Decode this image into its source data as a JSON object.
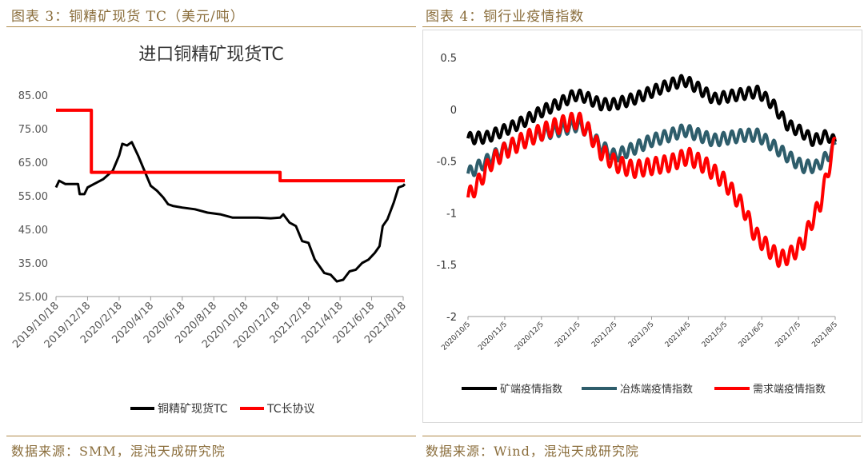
{
  "header": {
    "left_caption": "图表 3：铜精矿现货 TC（美元/吨）",
    "right_caption": "图表 4：铜行业疫情指数"
  },
  "footer": {
    "left_source": "数据来源：SMM，混沌天成研究院",
    "right_source": "数据来源：Wind，混沌天成研究院"
  },
  "colors": {
    "caption": "#8a6d3b",
    "spot_tc": "#000000",
    "long_term_tc": "#ff0000",
    "mine_index": "#000000",
    "smelt_index": "#2e5d6b",
    "demand_index": "#ff0000"
  },
  "chart_data": [
    {
      "type": "line",
      "title": "进口铜精矿现货TC",
      "xlabel": "",
      "ylabel": "",
      "ylim": [
        25,
        85
      ],
      "yticks": [
        "85.00",
        "75.00",
        "65.00",
        "55.00",
        "45.00",
        "35.00",
        "25.00"
      ],
      "x_ticks": [
        "2019/10/18",
        "2019/12/18",
        "2020/2/18",
        "2020/4/18",
        "2020/6/18",
        "2020/8/18",
        "2020/10/18",
        "2020/12/18",
        "2021/2/18",
        "2021/4/18",
        "2021/6/18",
        "2021/8/18"
      ],
      "legend_position": "bottom",
      "grid": false,
      "series": [
        {
          "name": "铜精矿现货TC",
          "points": [
            [
              0,
              57.5
            ],
            [
              0.1,
              59.5
            ],
            [
              0.3,
              58.5
            ],
            [
              0.7,
              58.5
            ],
            [
              0.75,
              55.5
            ],
            [
              0.9,
              55.5
            ],
            [
              1.0,
              57.5
            ],
            [
              1.2,
              58.5
            ],
            [
              1.5,
              60.0
            ],
            [
              1.8,
              62.5
            ],
            [
              2.0,
              67.0
            ],
            [
              2.1,
              70.5
            ],
            [
              2.25,
              70.0
            ],
            [
              2.4,
              71.0
            ],
            [
              2.6,
              67.0
            ],
            [
              2.8,
              62.5
            ],
            [
              3.0,
              58.0
            ],
            [
              3.2,
              56.5
            ],
            [
              3.4,
              54.5
            ],
            [
              3.55,
              52.5
            ],
            [
              3.7,
              52.0
            ],
            [
              4.0,
              51.5
            ],
            [
              4.4,
              51.0
            ],
            [
              4.8,
              50.0
            ],
            [
              5.2,
              49.5
            ],
            [
              5.6,
              48.5
            ],
            [
              6.0,
              48.5
            ],
            [
              6.4,
              48.5
            ],
            [
              6.8,
              48.3
            ],
            [
              7.1,
              48.5
            ],
            [
              7.2,
              49.5
            ],
            [
              7.4,
              47.0
            ],
            [
              7.6,
              46.0
            ],
            [
              7.8,
              41.5
            ],
            [
              8.0,
              41.0
            ],
            [
              8.2,
              36.0
            ],
            [
              8.5,
              32.0
            ],
            [
              8.7,
              31.5
            ],
            [
              8.9,
              29.5
            ],
            [
              9.1,
              30.0
            ],
            [
              9.3,
              32.5
            ],
            [
              9.5,
              33.0
            ],
            [
              9.7,
              35.0
            ],
            [
              9.9,
              36.0
            ],
            [
              10.1,
              38.0
            ],
            [
              10.25,
              40.0
            ],
            [
              10.35,
              46.0
            ],
            [
              10.5,
              48.0
            ],
            [
              10.7,
              53.0
            ],
            [
              10.85,
              57.5
            ],
            [
              11.0,
              58.0
            ],
            [
              11.05,
              58.5
            ]
          ]
        },
        {
          "name": "TC长协议",
          "points": [
            [
              0,
              80.5
            ],
            [
              1.12,
              80.5
            ],
            [
              1.12,
              62.0
            ],
            [
              7.1,
              62.0
            ],
            [
              7.1,
              59.5
            ],
            [
              11.05,
              59.5
            ]
          ]
        }
      ]
    },
    {
      "type": "line",
      "title": "",
      "xlabel": "",
      "ylabel": "",
      "ylim": [
        -2,
        0.5
      ],
      "yticks": [
        "0.5",
        "0",
        "-0.5",
        "-1",
        "-1.5",
        "-2"
      ],
      "x_ticks": [
        "2020/10/5",
        "2020/11/5",
        "2020/12/5",
        "2021/1/5",
        "2021/2/5",
        "2021/3/5",
        "2021/4/5",
        "2021/5/5",
        "2021/6/5",
        "2021/7/5",
        "2021/8/5"
      ],
      "legend_position": "bottom",
      "grid": false,
      "series": [
        {
          "name": "矿端疫情指数",
          "points": [
            [
              0,
              -0.28
            ],
            [
              0.5,
              -0.27
            ],
            [
              1.0,
              -0.2
            ],
            [
              1.5,
              -0.12
            ],
            [
              2.0,
              -0.02
            ],
            [
              2.5,
              0.06
            ],
            [
              2.9,
              0.14
            ],
            [
              3.2,
              0.12
            ],
            [
              3.6,
              0.05
            ],
            [
              4.0,
              0.05
            ],
            [
              4.5,
              0.1
            ],
            [
              5.0,
              0.17
            ],
            [
              5.5,
              0.24
            ],
            [
              5.9,
              0.28
            ],
            [
              6.3,
              0.2
            ],
            [
              6.7,
              0.1
            ],
            [
              7.0,
              0.12
            ],
            [
              7.5,
              0.15
            ],
            [
              7.9,
              0.17
            ],
            [
              8.3,
              0.05
            ],
            [
              8.7,
              -0.15
            ],
            [
              9.1,
              -0.22
            ],
            [
              9.4,
              -0.3
            ],
            [
              9.8,
              -0.25
            ],
            [
              10.0,
              -0.32
            ]
          ]
        },
        {
          "name": "冶炼端疫情指数",
          "points": [
            [
              0,
              -0.62
            ],
            [
              0.5,
              -0.5
            ],
            [
              1.0,
              -0.38
            ],
            [
              1.5,
              -0.3
            ],
            [
              2.0,
              -0.24
            ],
            [
              2.5,
              -0.2
            ],
            [
              3.0,
              -0.15
            ],
            [
              3.3,
              -0.22
            ],
            [
              3.6,
              -0.35
            ],
            [
              4.0,
              -0.45
            ],
            [
              4.5,
              -0.38
            ],
            [
              5.0,
              -0.3
            ],
            [
              5.5,
              -0.25
            ],
            [
              5.9,
              -0.2
            ],
            [
              6.3,
              -0.25
            ],
            [
              6.7,
              -0.3
            ],
            [
              7.0,
              -0.28
            ],
            [
              7.5,
              -0.25
            ],
            [
              7.9,
              -0.25
            ],
            [
              8.3,
              -0.35
            ],
            [
              8.7,
              -0.45
            ],
            [
              9.1,
              -0.55
            ],
            [
              9.5,
              -0.55
            ],
            [
              9.8,
              -0.45
            ],
            [
              10.0,
              -0.35
            ]
          ]
        },
        {
          "name": "需求端疫情指数",
          "points": [
            [
              0,
              -0.85
            ],
            [
              0.3,
              -0.7
            ],
            [
              0.6,
              -0.52
            ],
            [
              1.0,
              -0.4
            ],
            [
              1.5,
              -0.3
            ],
            [
              2.0,
              -0.22
            ],
            [
              2.5,
              -0.15
            ],
            [
              3.0,
              -0.1
            ],
            [
              3.3,
              -0.22
            ],
            [
              3.6,
              -0.4
            ],
            [
              4.0,
              -0.52
            ],
            [
              4.5,
              -0.58
            ],
            [
              5.0,
              -0.55
            ],
            [
              5.5,
              -0.52
            ],
            [
              6.0,
              -0.45
            ],
            [
              6.5,
              -0.55
            ],
            [
              7.0,
              -0.7
            ],
            [
              7.5,
              -0.95
            ],
            [
              7.8,
              -1.2
            ],
            [
              8.2,
              -1.35
            ],
            [
              8.5,
              -1.45
            ],
            [
              8.8,
              -1.4
            ],
            [
              9.1,
              -1.3
            ],
            [
              9.4,
              -1.05
            ],
            [
              9.6,
              -0.9
            ],
            [
              9.8,
              -0.6
            ],
            [
              9.9,
              -0.45
            ],
            [
              10.0,
              -0.3
            ]
          ]
        }
      ]
    }
  ]
}
